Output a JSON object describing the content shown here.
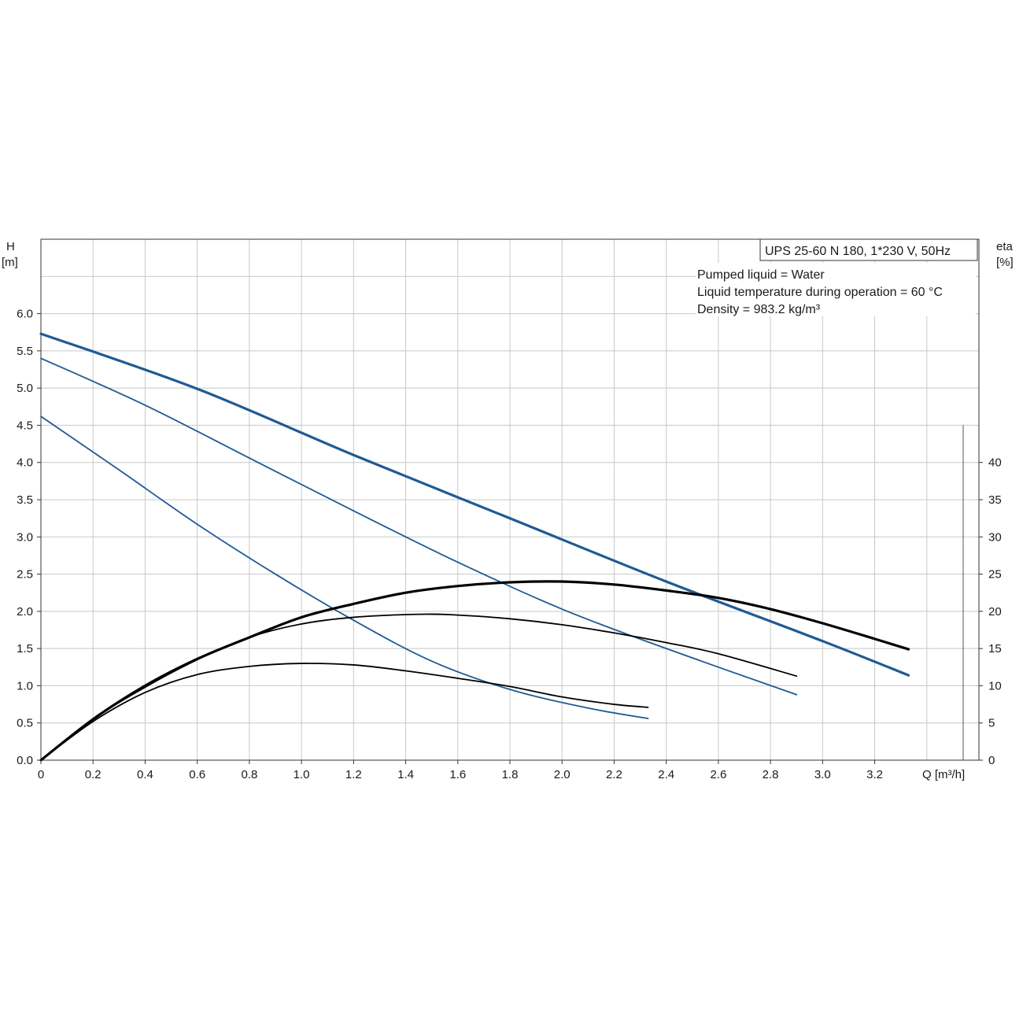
{
  "chart_data": {
    "type": "line",
    "title": "UPS 25-60 N 180, 1*230 V, 50Hz",
    "annotations": [
      "Pumped liquid = Water",
      "Liquid temperature during operation = 60 °C",
      "Density = 983.2 kg/m³"
    ],
    "x_axis": {
      "label": "Q [m³/h]",
      "range": [
        0,
        3.6
      ],
      "ticks": [
        0,
        0.2,
        0.4,
        0.6,
        0.8,
        1.0,
        1.2,
        1.4,
        1.6,
        1.8,
        2.0,
        2.2,
        2.4,
        2.6,
        2.8,
        3.0,
        3.2
      ],
      "tick_labels": [
        "0",
        "0.2",
        "0.4",
        "0.6",
        "0.8",
        "1.0",
        "1.2",
        "1.4",
        "1.6",
        "1.8",
        "2.0",
        "2.2",
        "2.4",
        "2.6",
        "2.8",
        "3.0",
        "3.2"
      ]
    },
    "y_axis_left": {
      "label_line1": "H",
      "label_line2": "[m]",
      "range": [
        0,
        7.0
      ],
      "ticks": [
        0,
        0.5,
        1.0,
        1.5,
        2.0,
        2.5,
        3.0,
        3.5,
        4.0,
        4.5,
        5.0,
        5.5,
        6.0
      ],
      "tick_labels": [
        "0.0",
        "0.5",
        "1.0",
        "1.5",
        "2.0",
        "2.5",
        "3.0",
        "3.5",
        "4.0",
        "4.5",
        "5.0",
        "5.5",
        "6.0"
      ]
    },
    "y_axis_right": {
      "label_line1": "eta",
      "label_line2": "[%]",
      "range": [
        0,
        70
      ],
      "ticks": [
        0,
        5,
        10,
        15,
        20,
        25,
        30,
        35,
        40
      ],
      "tick_labels": [
        "0",
        "5",
        "10",
        "15",
        "20",
        "25",
        "30",
        "35",
        "40"
      ]
    },
    "grid": true,
    "series": [
      {
        "kind": "head",
        "axis": "left",
        "color": "#1f5a94",
        "weight": "heavy",
        "x": [
          0,
          0.6,
          1.2,
          1.8,
          2.4,
          3.0,
          3.33
        ],
        "y": [
          5.73,
          4.99,
          4.1,
          3.25,
          2.4,
          1.6,
          1.14
        ]
      },
      {
        "kind": "head",
        "axis": "left",
        "color": "#1f5a94",
        "weight": "light",
        "x": [
          0,
          0.4,
          0.8,
          1.2,
          1.6,
          2.0,
          2.4,
          2.9
        ],
        "y": [
          5.4,
          4.77,
          4.06,
          3.35,
          2.66,
          2.03,
          1.5,
          0.88
        ]
      },
      {
        "kind": "head",
        "axis": "left",
        "color": "#1f5a94",
        "weight": "light",
        "x": [
          0,
          0.3,
          0.6,
          0.9,
          1.2,
          1.5,
          1.8,
          2.1,
          2.33
        ],
        "y": [
          4.62,
          3.9,
          3.17,
          2.5,
          1.88,
          1.33,
          0.95,
          0.7,
          0.56
        ]
      },
      {
        "kind": "eta",
        "axis": "right",
        "color": "#000000",
        "weight": "heavy",
        "x": [
          0,
          0.2,
          0.4,
          0.6,
          0.8,
          1.0,
          1.2,
          1.4,
          1.6,
          1.8,
          2.0,
          2.2,
          2.4,
          2.6,
          2.8,
          3.0,
          3.2,
          3.33
        ],
        "y": [
          0,
          5.5,
          10.0,
          13.6,
          16.5,
          19.2,
          21.0,
          22.5,
          23.4,
          23.9,
          24.0,
          23.6,
          22.8,
          21.8,
          20.3,
          18.4,
          16.3,
          14.9
        ]
      },
      {
        "kind": "eta",
        "axis": "right",
        "color": "#000000",
        "weight": "light",
        "x": [
          0,
          0.2,
          0.4,
          0.6,
          0.8,
          1.0,
          1.2,
          1.45,
          1.6,
          1.8,
          2.0,
          2.2,
          2.4,
          2.6,
          2.9
        ],
        "y": [
          0,
          5.5,
          9.8,
          13.5,
          16.5,
          18.3,
          19.2,
          19.6,
          19.5,
          19.0,
          18.2,
          17.1,
          15.8,
          14.3,
          11.3
        ]
      },
      {
        "kind": "eta",
        "axis": "right",
        "color": "#000000",
        "weight": "light",
        "x": [
          0,
          0.2,
          0.4,
          0.6,
          0.8,
          1.0,
          1.2,
          1.4,
          1.6,
          1.8,
          2.0,
          2.2,
          2.33
        ],
        "y": [
          0,
          5.2,
          9.1,
          11.5,
          12.6,
          13.0,
          12.8,
          12.0,
          11.0,
          9.9,
          8.5,
          7.5,
          7.1
        ]
      }
    ]
  }
}
